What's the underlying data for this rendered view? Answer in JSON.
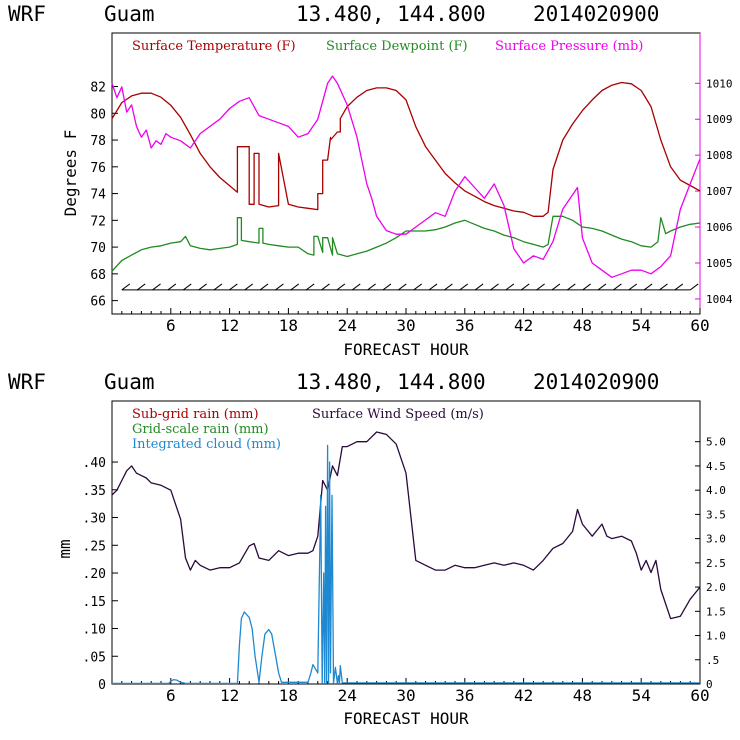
{
  "charts": [
    {
      "header": {
        "model": "WRF",
        "location": "Guam",
        "coords": "13.480, 144.800",
        "init": "2014020900"
      },
      "xlabel": "FORECAST HOUR",
      "ylabel_left": "Degrees F",
      "legend": {
        "temp": "Surface Temperature (F)",
        "dew": "Surface Dewpoint (F)",
        "pres": "Surface Pressure (mb)"
      }
    },
    {
      "header": {
        "model": "WRF",
        "location": "Guam",
        "coords": "13.480, 144.800",
        "init": "2014020900"
      },
      "xlabel": "FORECAST HOUR",
      "ylabel_left": "mm",
      "legend": {
        "subgrid": "Sub-grid rain (mm)",
        "gridscale": "Grid-scale rain (mm)",
        "cloud": "Integrated cloud (mm)",
        "wind": "Surface Wind Speed (m/s)"
      }
    }
  ],
  "colors": {
    "temp": "#aa0000",
    "dew": "#228b22",
    "pres": "#ee00ee",
    "wind": "#2a0a3a",
    "cloud": "#1e88d0",
    "subgrid": "#aa0000",
    "gridscale": "#228b22",
    "barbs": "#000000"
  },
  "chart_data": [
    {
      "type": "line",
      "xlim": [
        0,
        60
      ],
      "xticks": [
        6,
        12,
        18,
        24,
        30,
        36,
        42,
        48,
        54,
        60
      ],
      "ylim": [
        65,
        86
      ],
      "yticks": [
        66,
        68,
        70,
        72,
        74,
        76,
        78,
        80,
        82
      ],
      "y2lim": [
        1003.58,
        1011.4
      ],
      "y2ticks": [
        1004,
        1005,
        1006,
        1007,
        1008,
        1009,
        1010
      ],
      "series": [
        {
          "name": "Surface Temperature (F)",
          "axis": "left",
          "color_key": "temp",
          "x": [
            0,
            1,
            2,
            3,
            4,
            5,
            6,
            7,
            8,
            9,
            10,
            11,
            12.8,
            12.8,
            13,
            14,
            14,
            14.5,
            14.5,
            15,
            15,
            16,
            17,
            17,
            18,
            19,
            20,
            21,
            21,
            21.5,
            21.5,
            22,
            22.3,
            22.3,
            23,
            23.3,
            23.3,
            24,
            25,
            26,
            27,
            28,
            29,
            30,
            31,
            32,
            33,
            34,
            35,
            36,
            37,
            38,
            39,
            40,
            41,
            42,
            43,
            44,
            44.5,
            45,
            46,
            47,
            48,
            49,
            50,
            51,
            52,
            53,
            54,
            55,
            56,
            57,
            58,
            59,
            60
          ],
          "y": [
            79.6,
            80.8,
            81.3,
            81.5,
            81.5,
            81.2,
            80.6,
            79.7,
            78.4,
            77.0,
            76.0,
            75.2,
            74.1,
            77.5,
            77.5,
            77.5,
            73.2,
            73.2,
            77.0,
            77.0,
            73.2,
            73.0,
            73.1,
            77.0,
            73.2,
            73.0,
            72.9,
            72.8,
            74.0,
            74.0,
            76.5,
            76.5,
            78.2,
            78.0,
            78.6,
            78.6,
            79.6,
            80.5,
            81.2,
            81.7,
            81.9,
            81.9,
            81.7,
            81.0,
            79.0,
            77.5,
            76.5,
            75.5,
            74.8,
            74.2,
            73.8,
            73.4,
            73.1,
            72.9,
            72.7,
            72.6,
            72.3,
            72.3,
            72.6,
            75.8,
            78.0,
            79.2,
            80.2,
            81.0,
            81.7,
            82.1,
            82.3,
            82.2,
            81.7,
            80.5,
            78.0,
            76.0,
            75.0,
            74.6,
            74.2
          ]
        },
        {
          "name": "Surface Dewpoint (F)",
          "axis": "left",
          "color_key": "dew",
          "x": [
            0,
            1,
            2,
            3,
            4,
            5,
            6,
            7,
            7.5,
            8,
            9,
            10,
            11,
            12,
            12.8,
            12.8,
            13.2,
            13.2,
            14,
            15,
            15,
            15.4,
            15.4,
            16,
            17,
            18,
            19,
            20,
            20.6,
            20.6,
            21,
            21.5,
            21.5,
            22,
            22.5,
            22.5,
            23,
            24,
            25,
            26,
            27,
            28,
            29,
            30,
            31,
            32,
            33,
            34,
            35,
            36,
            37,
            38,
            39,
            40,
            41,
            42,
            43,
            44,
            44.5,
            45,
            46,
            47,
            48,
            49,
            50,
            51,
            52,
            53,
            54,
            55,
            55.7,
            56,
            56.5,
            57,
            58,
            59,
            60
          ],
          "y": [
            68.2,
            69.0,
            69.4,
            69.8,
            70.0,
            70.1,
            70.3,
            70.4,
            70.8,
            70.1,
            69.9,
            69.8,
            69.9,
            70.0,
            70.2,
            72.2,
            72.2,
            70.5,
            70.4,
            70.3,
            71.4,
            71.4,
            70.3,
            70.2,
            70.1,
            70.0,
            70.0,
            69.5,
            69.4,
            70.8,
            70.8,
            69.6,
            70.7,
            70.7,
            69.4,
            70.7,
            69.5,
            69.3,
            69.5,
            69.7,
            70.0,
            70.3,
            70.7,
            71.2,
            71.2,
            71.2,
            71.3,
            71.5,
            71.8,
            72.0,
            71.7,
            71.4,
            71.2,
            70.9,
            70.7,
            70.4,
            70.2,
            70.0,
            70.2,
            72.3,
            72.3,
            72.0,
            71.5,
            71.4,
            71.2,
            70.9,
            70.6,
            70.4,
            70.1,
            70.0,
            70.4,
            72.2,
            71.0,
            71.2,
            71.5,
            71.7,
            71.8
          ]
        },
        {
          "name": "Surface Pressure (mb)",
          "axis": "right",
          "color_key": "pres",
          "x": [
            0,
            0.5,
            1,
            1.5,
            2,
            2.5,
            3,
            3.5,
            4,
            4.5,
            5,
            5.5,
            6,
            7,
            8,
            9,
            10,
            11,
            12,
            13,
            14,
            15,
            16,
            17,
            18,
            19,
            20,
            21,
            22,
            22.5,
            23,
            24,
            25,
            26,
            26.5,
            27,
            28,
            29,
            30,
            31,
            32,
            33,
            34,
            35,
            36,
            37,
            38,
            39,
            40,
            41,
            42,
            43,
            44,
            45,
            46,
            47,
            47.5,
            48,
            49,
            50,
            51,
            52,
            53,
            54,
            55,
            56,
            57,
            58,
            59,
            60
          ],
          "y": [
            1010.0,
            1009.6,
            1009.9,
            1009.2,
            1009.4,
            1008.8,
            1008.5,
            1008.7,
            1008.2,
            1008.4,
            1008.3,
            1008.6,
            1008.5,
            1008.4,
            1008.2,
            1008.6,
            1008.8,
            1009.0,
            1009.3,
            1009.5,
            1009.6,
            1009.1,
            1009.0,
            1008.9,
            1008.8,
            1008.5,
            1008.6,
            1009.0,
            1010.0,
            1010.2,
            1010.0,
            1009.4,
            1008.5,
            1007.2,
            1006.8,
            1006.3,
            1005.9,
            1005.8,
            1005.8,
            1006.0,
            1006.2,
            1006.4,
            1006.3,
            1007.0,
            1007.4,
            1007.1,
            1006.8,
            1007.2,
            1006.6,
            1005.4,
            1005.0,
            1005.2,
            1005.1,
            1005.6,
            1006.5,
            1006.9,
            1007.1,
            1005.7,
            1005.0,
            1004.8,
            1004.6,
            1004.7,
            1004.8,
            1004.8,
            1004.7,
            1004.9,
            1005.2,
            1006.5,
            1007.2,
            1007.9
          ]
        }
      ],
      "wind_barbs": {
        "x_start": 1,
        "x_end": 59,
        "count": 38,
        "baseline_y": 66.8,
        "rising_end_y": 67.2
      }
    },
    {
      "type": "line",
      "xlim": [
        0,
        60
      ],
      "xticks": [
        6,
        12,
        18,
        24,
        30,
        36,
        42,
        48,
        54,
        60
      ],
      "ylim": [
        0,
        0.51
      ],
      "yticks": [
        0,
        0.05,
        0.1,
        0.15,
        0.2,
        0.25,
        0.3,
        0.35,
        0.4
      ],
      "ytick_labels": [
        "0",
        ".05",
        ".10",
        ".15",
        ".20",
        ".25",
        ".30",
        ".35",
        ".40"
      ],
      "y2lim": [
        0,
        5.84
      ],
      "y2ticks": [
        0,
        0.5,
        1.0,
        1.5,
        2.0,
        2.5,
        3.0,
        3.5,
        4.0,
        4.5,
        5.0
      ],
      "y2tick_labels": [
        "0",
        ".5",
        "1.0",
        "1.5",
        "2.0",
        "2.5",
        "3.0",
        "3.5",
        "4.0",
        "4.5",
        "5.0"
      ],
      "series": [
        {
          "name": "Surface Wind Speed (m/s)",
          "axis": "right",
          "color_key": "wind",
          "x": [
            0,
            0.5,
            1,
            1.5,
            2,
            2.5,
            3,
            3.5,
            4,
            5,
            6,
            7,
            7.5,
            8,
            8.5,
            9,
            10,
            11,
            12,
            13,
            14,
            14.5,
            15,
            16,
            17,
            17.5,
            18,
            19,
            20,
            20.5,
            21,
            21.5,
            22,
            22.5,
            23,
            23.5,
            24,
            25,
            26,
            27,
            28,
            29,
            30,
            31,
            32,
            33,
            34,
            35,
            36,
            37,
            38,
            39,
            40,
            41,
            42,
            43,
            44,
            45,
            46,
            47,
            47.5,
            48,
            49,
            50,
            50.5,
            51,
            52,
            53,
            53.5,
            54,
            54.5,
            55,
            55.5,
            56,
            57,
            58,
            59,
            60
          ],
          "y": [
            3.9,
            4.0,
            4.2,
            4.4,
            4.5,
            4.35,
            4.3,
            4.25,
            4.15,
            4.1,
            4.0,
            3.4,
            2.6,
            2.35,
            2.55,
            2.45,
            2.35,
            2.4,
            2.4,
            2.5,
            2.85,
            2.9,
            2.6,
            2.55,
            2.75,
            2.7,
            2.65,
            2.7,
            2.7,
            2.75,
            3.05,
            4.2,
            4.0,
            4.5,
            4.3,
            4.9,
            4.9,
            5.0,
            5.0,
            5.2,
            5.15,
            4.95,
            4.35,
            2.55,
            2.45,
            2.35,
            2.35,
            2.45,
            2.4,
            2.4,
            2.45,
            2.5,
            2.45,
            2.5,
            2.45,
            2.35,
            2.55,
            2.8,
            2.9,
            3.15,
            3.6,
            3.3,
            3.05,
            3.3,
            3.05,
            3.0,
            3.05,
            2.95,
            2.7,
            2.35,
            2.55,
            2.3,
            2.55,
            1.95,
            1.35,
            1.4,
            1.75,
            2.0
          ]
        },
        {
          "name": "Integrated cloud (mm)",
          "axis": "left",
          "color_key": "cloud",
          "x": [
            0,
            5.8,
            6.0,
            6.3,
            6.6,
            7.0,
            7.5,
            12.8,
            13.0,
            13.2,
            13.5,
            14.0,
            14.3,
            14.6,
            15.0,
            15.3,
            15.6,
            16.0,
            16.3,
            16.6,
            17.0,
            17.3,
            20.0,
            20.3,
            20.5,
            21.0,
            21.3,
            21.45,
            21.6,
            21.7,
            21.8,
            21.9,
            22.0,
            22.1,
            22.2,
            22.3,
            22.45,
            22.6,
            22.8,
            23.0,
            23.1,
            23.2,
            23.3,
            23.5,
            60
          ],
          "y": [
            0.001,
            0.001,
            0.005,
            0.008,
            0.007,
            0.003,
            0.001,
            0.001,
            0.07,
            0.118,
            0.13,
            0.12,
            0.1,
            0.05,
            0.003,
            0.05,
            0.09,
            0.098,
            0.09,
            0.06,
            0.02,
            0.003,
            0.003,
            0.02,
            0.035,
            0.02,
            0.34,
            0.001,
            0.2,
            0.001,
            0.32,
            0.001,
            0.43,
            0.001,
            0.4,
            0.02,
            0.34,
            0.001,
            0.03,
            0.001,
            0.015,
            0.001,
            0.033,
            0.002,
            0.002
          ]
        }
      ]
    }
  ]
}
